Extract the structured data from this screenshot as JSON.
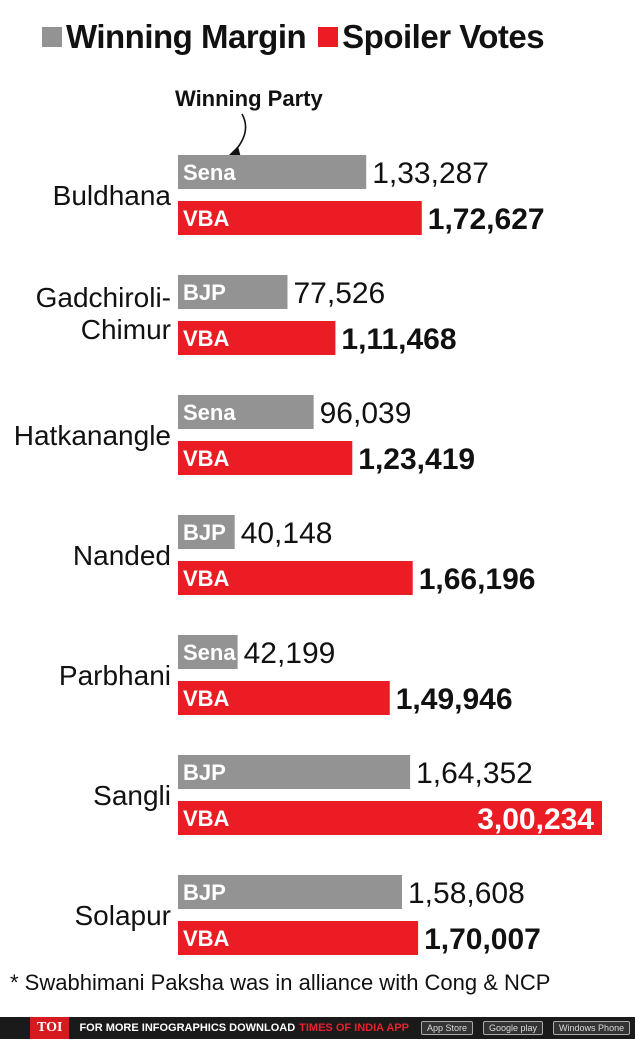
{
  "legend": {
    "items": [
      {
        "label": "Winning Margin",
        "color": "#939393"
      },
      {
        "label": "Spoiler Votes",
        "color": "#ec1c24"
      }
    ]
  },
  "chart_data": {
    "type": "bar",
    "orientation": "horizontal",
    "title": "",
    "xlabel": "",
    "ylabel": "",
    "xlim": [
      0,
      300234
    ],
    "annotation": "Winning Party",
    "categories": [
      "Buldhana",
      "Gadchiroli-Chimur",
      "Hatkanangle",
      "Nanded",
      "Parbhani",
      "Sangli",
      "Solapur"
    ],
    "category_display": [
      [
        "Buldhana"
      ],
      [
        "Gadchiroli-",
        "Chimur"
      ],
      [
        "Hatkanangle"
      ],
      [
        "Nanded"
      ],
      [
        "Parbhani"
      ],
      [
        "Sangli"
      ],
      [
        "Solapur"
      ]
    ],
    "series": [
      {
        "name": "Winning Margin",
        "color": "#939393",
        "values": [
          133287,
          77526,
          96039,
          40148,
          42199,
          164352,
          158608
        ],
        "labels": [
          "1,33,287",
          "77,526",
          "96,039",
          "40,148",
          "42,199",
          "1,64,352",
          "1,58,608"
        ],
        "parties": [
          "Sena",
          "BJP",
          "Sena",
          "BJP",
          "Sena",
          "BJP",
          "BJP"
        ]
      },
      {
        "name": "Spoiler Votes",
        "color": "#ec1c24",
        "values": [
          172627,
          111468,
          123419,
          166196,
          149946,
          300234,
          170007
        ],
        "labels": [
          "1,72,627",
          "1,11,468",
          "1,23,419",
          "1,66,196",
          "1,49,946",
          "3,00,234",
          "1,70,007"
        ],
        "parties": [
          "VBA",
          "VBA",
          "VBA",
          "VBA",
          "VBA",
          "VBA",
          "VBA"
        ]
      }
    ]
  },
  "footnote": "* Swabhimani Paksha was in alliance with Cong & NCP",
  "footer": {
    "logo": "TOI",
    "text": "FOR MORE  INFOGRAPHICS DOWNLOAD",
    "brand": "TIMES OF INDIA  APP",
    "stores": [
      "App Store",
      "Google play",
      "Windows Phone"
    ]
  }
}
